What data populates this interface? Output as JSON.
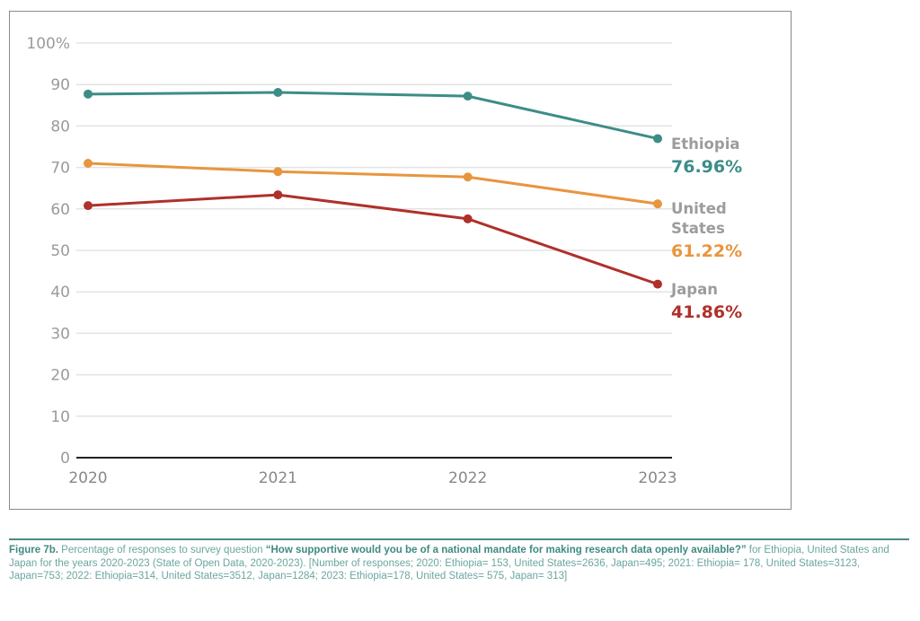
{
  "chart_data": {
    "type": "line",
    "x": [
      2020,
      2021,
      2022,
      2023
    ],
    "ylim": [
      0,
      100
    ],
    "yticks": [
      "0",
      "10",
      "20",
      "30",
      "40",
      "50",
      "60",
      "70",
      "80",
      "90",
      "100%"
    ],
    "xticks": [
      "2020",
      "2021",
      "2022",
      "2023"
    ],
    "grid": true,
    "legend": "end-labels-right",
    "series": [
      {
        "name": "Ethiopia",
        "end_label": "76.96%",
        "color": "#3d8d87",
        "values": [
          87.7,
          88.1,
          87.2,
          76.96
        ]
      },
      {
        "name": "United States",
        "name_lines": [
          "United",
          "States"
        ],
        "end_label": "61.22%",
        "color": "#e8953f",
        "values": [
          71.0,
          69.0,
          67.7,
          61.22
        ]
      },
      {
        "name": "Japan",
        "end_label": "41.86%",
        "color": "#b0302a",
        "values": [
          60.8,
          63.4,
          57.6,
          41.86
        ]
      }
    ]
  },
  "caption": {
    "figure": "Figure 7b.",
    "lead": " Percentage of responses to survey question ",
    "question": "“How supportive would you be of a national mandate for making research data openly available?”",
    "rest": " for Ethiopia, United States and Japan for the years 2020-2023 (State of Open Data, 2020-2023). [Number of responses; 2020: Ethiopia= 153, United States=2636, Japan=495; 2021: Ethiopia= 178, United States=3123, Japan=753; 2022: Ethiopia=314, United States=3512, Japan=1284; 2023: Ethiopia=178, United States= 575, Japan= 313]"
  }
}
